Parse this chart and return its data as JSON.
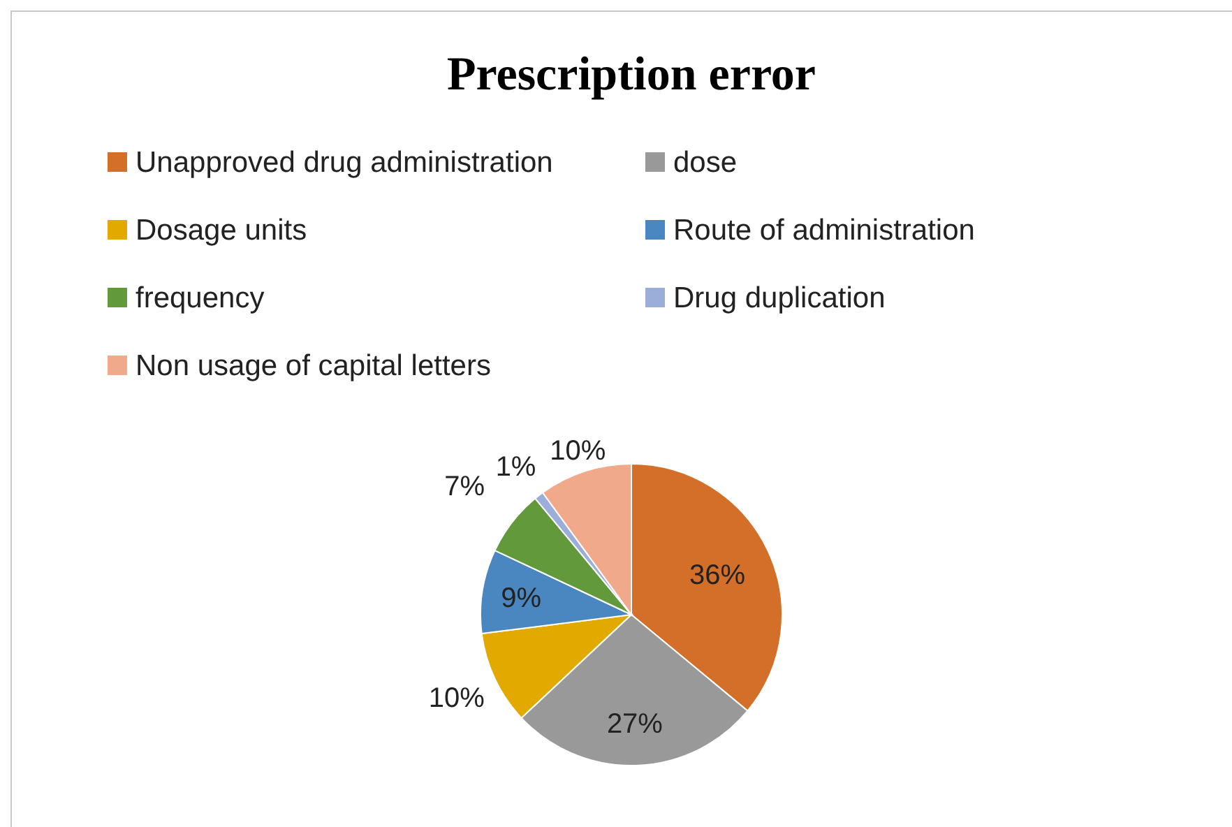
{
  "chart_data": {
    "type": "pie",
    "title": "Prescription error",
    "categories": [
      "Unapproved drug administration",
      "dose",
      "Dosage units",
      "Route of administration",
      "frequency",
      "Drug duplication",
      "Non usage of capital letters"
    ],
    "values": [
      36,
      27,
      10,
      9,
      7,
      1,
      10
    ],
    "colors": [
      "#d46f2a",
      "#999999",
      "#e2a900",
      "#4a86c0",
      "#62993b",
      "#9badd9",
      "#f0a98b"
    ],
    "value_labels": [
      "36%",
      "27%",
      "10%",
      "9%",
      "7%",
      "1%",
      "10%"
    ],
    "legend": "top"
  }
}
